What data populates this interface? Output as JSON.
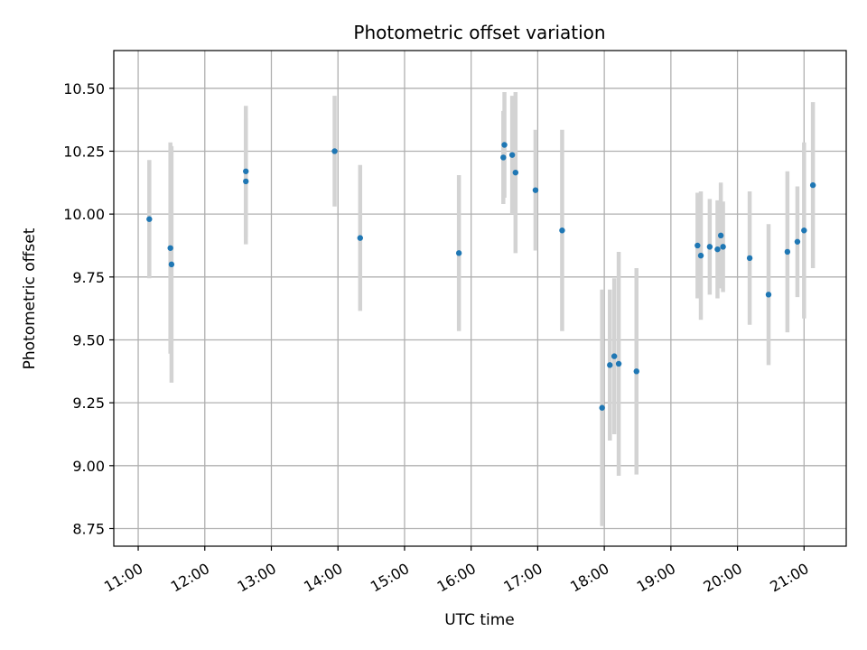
{
  "chart_data": {
    "type": "scatter",
    "title": "Photometric offset variation",
    "xlabel": "UTC time",
    "ylabel": "Photometric offset",
    "x_axis": {
      "type": "time",
      "range": [
        "10:38",
        "21:38"
      ],
      "ticks": [
        "11:00",
        "12:00",
        "13:00",
        "14:00",
        "15:00",
        "16:00",
        "17:00",
        "18:00",
        "19:00",
        "20:00",
        "21:00"
      ]
    },
    "ylim": [
      8.68,
      10.65
    ],
    "yticks": [
      "8.75",
      "9.00",
      "9.25",
      "9.50",
      "9.75",
      "10.00",
      "10.25",
      "10.50"
    ],
    "grid": true,
    "series": [
      {
        "marker_color": "#1f77b4",
        "errorbar_color": "#d3d3d3",
        "points": [
          {
            "x": "11:10",
            "y": 9.98,
            "err": 0.235
          },
          {
            "x": "11:29",
            "y": 9.865,
            "err": 0.42
          },
          {
            "x": "11:30",
            "y": 9.8,
            "err": 0.47
          },
          {
            "x": "12:37",
            "y": 10.17,
            "err": 0.26
          },
          {
            "x": "12:37",
            "y": 10.13,
            "err": 0.25
          },
          {
            "x": "13:57",
            "y": 10.25,
            "err": 0.22
          },
          {
            "x": "14:20",
            "y": 9.905,
            "err": 0.29
          },
          {
            "x": "15:49",
            "y": 9.845,
            "err": 0.31
          },
          {
            "x": "16:29",
            "y": 10.225,
            "err": 0.185
          },
          {
            "x": "16:30",
            "y": 10.275,
            "err": 0.21
          },
          {
            "x": "16:37",
            "y": 10.235,
            "err": 0.235
          },
          {
            "x": "16:40",
            "y": 10.165,
            "err": 0.32
          },
          {
            "x": "16:58",
            "y": 10.095,
            "err": 0.24
          },
          {
            "x": "17:22",
            "y": 9.935,
            "err": 0.4
          },
          {
            "x": "17:58",
            "y": 9.23,
            "err": 0.47
          },
          {
            "x": "18:05",
            "y": 9.4,
            "err": 0.3
          },
          {
            "x": "18:09",
            "y": 9.435,
            "err": 0.31
          },
          {
            "x": "18:13",
            "y": 9.405,
            "err": 0.445
          },
          {
            "x": "18:29",
            "y": 9.375,
            "err": 0.41
          },
          {
            "x": "19:24",
            "y": 9.875,
            "err": 0.21
          },
          {
            "x": "19:27",
            "y": 9.835,
            "err": 0.255
          },
          {
            "x": "19:35",
            "y": 9.87,
            "err": 0.19
          },
          {
            "x": "19:42",
            "y": 9.86,
            "err": 0.195
          },
          {
            "x": "19:45",
            "y": 9.915,
            "err": 0.21
          },
          {
            "x": "19:47",
            "y": 9.87,
            "err": 0.18
          },
          {
            "x": "20:11",
            "y": 9.825,
            "err": 0.265
          },
          {
            "x": "20:28",
            "y": 9.68,
            "err": 0.28
          },
          {
            "x": "20:45",
            "y": 9.85,
            "err": 0.32
          },
          {
            "x": "20:54",
            "y": 9.89,
            "err": 0.22
          },
          {
            "x": "21:00",
            "y": 9.935,
            "err": 0.35
          },
          {
            "x": "21:08",
            "y": 10.115,
            "err": 0.33
          }
        ]
      }
    ]
  }
}
